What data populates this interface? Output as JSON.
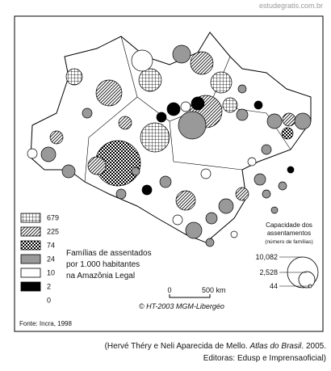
{
  "watermark": "estudegratis.com.br",
  "legend": {
    "classes": [
      "679",
      "225",
      "74",
      "24",
      "10",
      "2",
      "0"
    ],
    "title": [
      "Famílias de assentados",
      "por 1.000 habitantes",
      "na Amazônia Legal"
    ]
  },
  "size_legend": {
    "title": [
      "Capacidade dos",
      "assentamentos"
    ],
    "subtitle": "(número de famílias)",
    "values": [
      "10,082",
      "2,528",
      "44"
    ]
  },
  "scale": {
    "start": "0",
    "end": "500 km"
  },
  "credit": "© HT-2003 MGM-Libergéo",
  "source": "Fonte: Incra, 1998",
  "citation": {
    "before": "(Hervé Théry e Neli Aparecida de Mello. ",
    "book": "Atlas do Brasil",
    "after": ". 2005.",
    "line2": "Editoras: Edusp e Imprensaoficial)"
  }
}
